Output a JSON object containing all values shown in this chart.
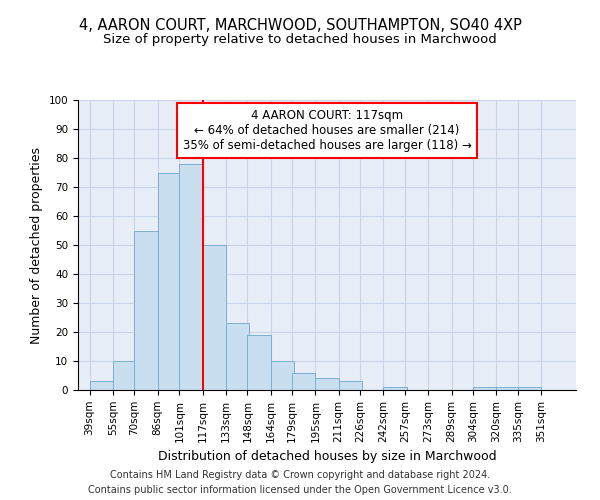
{
  "title_line1": "4, AARON COURT, MARCHWOOD, SOUTHAMPTON, SO40 4XP",
  "title_line2": "Size of property relative to detached houses in Marchwood",
  "xlabel": "Distribution of detached houses by size in Marchwood",
  "ylabel": "Number of detached properties",
  "bar_color": "#c9dff0",
  "bar_edge_color": "#7aafd4",
  "vline_x_index": 5,
  "vline_color": "red",
  "annotation_text": "4 AARON COURT: 117sqm\n← 64% of detached houses are smaller (214)\n35% of semi-detached houses are larger (118) →",
  "annotation_box_color": "red",
  "annotation_bg": "white",
  "bins": [
    39,
    55,
    70,
    86,
    101,
    117,
    133,
    148,
    164,
    179,
    195,
    211,
    226,
    242,
    257,
    273,
    289,
    304,
    320,
    335,
    351
  ],
  "counts": [
    3,
    10,
    55,
    75,
    78,
    50,
    23,
    19,
    10,
    6,
    4,
    3,
    0,
    1,
    0,
    0,
    0,
    1,
    1,
    1
  ],
  "ylim": [
    0,
    100
  ],
  "yticks": [
    0,
    10,
    20,
    30,
    40,
    50,
    60,
    70,
    80,
    90,
    100
  ],
  "grid_color": "#c8d4e8",
  "background_color": "#e8eef8",
  "footer_line1": "Contains HM Land Registry data © Crown copyright and database right 2024.",
  "footer_line2": "Contains public sector information licensed under the Open Government Licence v3.0.",
  "title_fontsize": 10.5,
  "subtitle_fontsize": 9.5,
  "axis_label_fontsize": 9,
  "tick_fontsize": 7.5,
  "footer_fontsize": 7,
  "annotation_fontsize": 8.5
}
